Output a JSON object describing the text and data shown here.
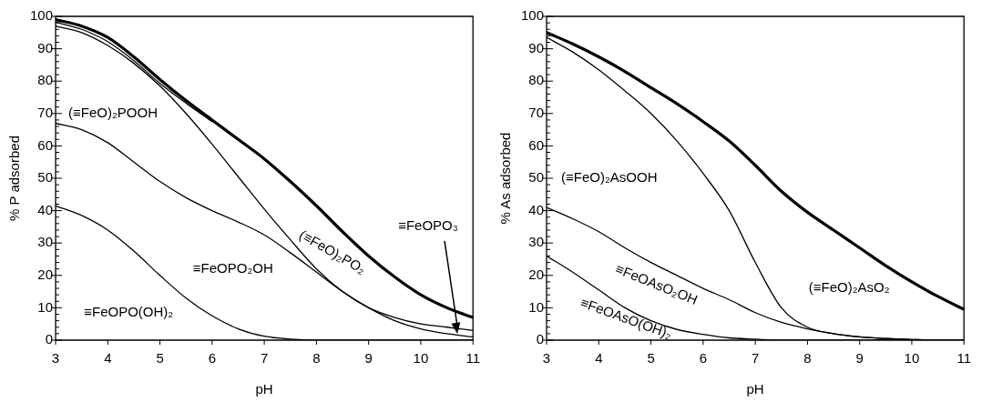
{
  "chart_data": [
    {
      "type": "line",
      "xlabel": "pH",
      "ylabel": "% P adsorbed",
      "xlim": [
        3,
        11
      ],
      "ylim": [
        0,
        100
      ],
      "xticks": [
        3,
        4,
        5,
        6,
        7,
        8,
        9,
        10,
        11
      ],
      "yticks": [
        0,
        10,
        20,
        30,
        40,
        50,
        60,
        70,
        80,
        90,
        100
      ],
      "grid": false,
      "legend": false,
      "marker": "none",
      "line_style": "solid",
      "x": [
        3,
        3.5,
        4,
        4.5,
        5,
        5.5,
        6,
        6.5,
        7,
        7.5,
        8,
        8.5,
        9,
        9.5,
        10,
        10.5,
        11
      ],
      "series": [
        {
          "color": "#000000",
          "values": [
            41.5,
            38.5,
            34,
            27.5,
            20,
            13,
            7.5,
            3.5,
            1.2,
            0.3,
            0,
            0,
            0,
            0,
            0,
            0,
            0
          ]
        },
        {
          "color": "#000000",
          "values": [
            67,
            65,
            61,
            55,
            49,
            44,
            40,
            36.5,
            32.5,
            27,
            21,
            15,
            10,
            6,
            3.5,
            2,
            1
          ]
        },
        {
          "color": "#000000",
          "values": [
            97,
            95,
            91,
            85.5,
            78.5,
            70,
            60.5,
            50.5,
            40.5,
            31,
            22,
            15,
            10,
            7,
            5,
            4,
            3
          ]
        },
        {
          "color": "#000000",
          "x": [
            3,
            3.5,
            4,
            4.5,
            5,
            5.5,
            6
          ],
          "values": [
            98.2,
            96,
            92.2,
            86.3,
            79.3,
            73.2,
            67.5
          ]
        },
        {
          "color": "#000000",
          "values": [
            99,
            97,
            93.5,
            87.5,
            80.5,
            74,
            68,
            62,
            56,
            49,
            41.5,
            33.5,
            26,
            19.5,
            14,
            10,
            7
          ]
        }
      ],
      "annotations": [
        "(≡FeO)₂POOH",
        "≡FeOPO₂OH",
        "≡FeOPO(OH)₂",
        "(≡FeO)₂PO₂",
        {
          "text": "≡FeOPO₃",
          "x": 10.7,
          "y": 2
        }
      ]
    },
    {
      "type": "line",
      "xlabel": "pH",
      "ylabel": "% As adsorbed",
      "xlim": [
        3,
        11
      ],
      "ylim": [
        0,
        100
      ],
      "xticks": [
        3,
        4,
        5,
        6,
        7,
        8,
        9,
        10,
        11
      ],
      "yticks": [
        0,
        10,
        20,
        30,
        40,
        50,
        60,
        70,
        80,
        90,
        100
      ],
      "grid": false,
      "legend": false,
      "marker": "none",
      "line_style": "solid",
      "x": [
        3,
        3.5,
        4,
        4.5,
        5,
        5.5,
        6,
        6.5,
        7,
        7.5,
        8,
        8.5,
        9,
        9.5,
        10,
        10.5,
        11
      ],
      "series": [
        {
          "color": "#000000",
          "values": [
            26,
            21,
            15.5,
            10,
            6,
            3.3,
            1.8,
            0.7,
            0.3,
            0,
            0,
            0,
            0,
            0,
            0,
            0,
            0
          ]
        },
        {
          "color": "#000000",
          "values": [
            41,
            37.5,
            33.5,
            28.5,
            24,
            20,
            16,
            12.5,
            8.5,
            5.5,
            3.5,
            2,
            1,
            0.5,
            0.2,
            0,
            0
          ]
        },
        {
          "color": "#000000",
          "values": [
            93.5,
            89,
            83.5,
            77,
            70,
            61.5,
            51.5,
            40,
            24,
            10,
            4,
            2,
            1,
            0.5,
            0.2,
            0,
            0
          ]
        },
        {
          "color": "#000000",
          "values": [
            95,
            91.5,
            87.5,
            83,
            78,
            73,
            67.5,
            61.5,
            54,
            46,
            39.5,
            34,
            28.5,
            23,
            18,
            13.5,
            9.5
          ]
        }
      ],
      "annotations": [
        "(≡FeO)₂AsOOH",
        "≡FeOAsO₂OH",
        "≡FeOAsO(OH)₂",
        "(≡FeO)₂AsO₂"
      ]
    }
  ]
}
